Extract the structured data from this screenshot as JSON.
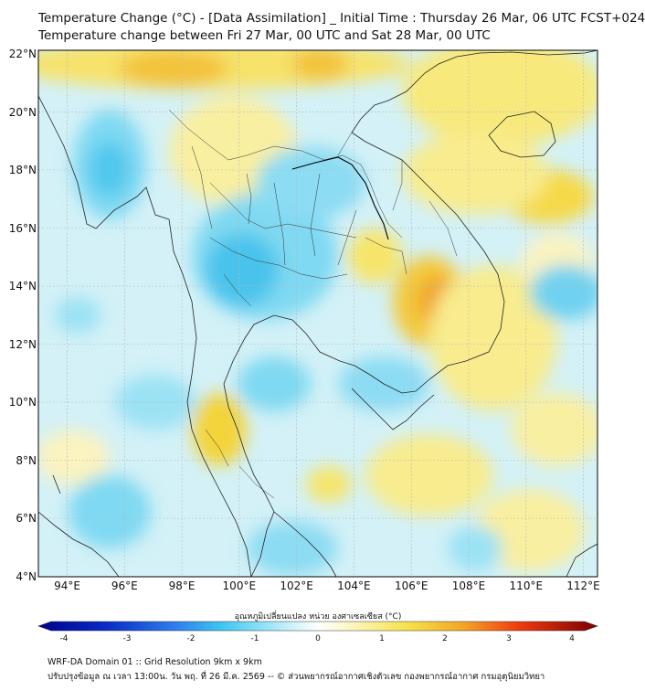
{
  "title_line1": "Temperature Change (°C) - [Data Assimilation] _ Initial Time : Thursday 26 Mar, 06 UTC FCST+024",
  "title_line2": "Temperature change between Fri 27 Mar, 00 UTC and Sat 28 Mar, 00 UTC",
  "map": {
    "lon_range": [
      93,
      112.5
    ],
    "lat_range": [
      4,
      22.2
    ],
    "lat_ticks": [
      "22°N",
      "20°N",
      "18°N",
      "16°N",
      "14°N",
      "12°N",
      "10°N",
      "8°N",
      "6°N",
      "4°N"
    ],
    "lon_ticks": [
      "94°E",
      "96°E",
      "98°E",
      "100°E",
      "102°E",
      "104°E",
      "106°E",
      "108°E",
      "110°E",
      "112°E"
    ],
    "grid": true
  },
  "colorbar": {
    "label": "อุณหภูมิเปลี่ยนแปลง หน่วย องศาเซลเซียส (°C)",
    "tick_labels": [
      "-4",
      "-3",
      "-2",
      "-1",
      "0",
      "1",
      "2",
      "3",
      "4"
    ],
    "range": [
      -4,
      4
    ],
    "colors": {
      "cold_extreme": "#00008b",
      "cold": "#1e4ad8",
      "cool": "#3fc8f0",
      "neutral": "#ffffff",
      "warm": "#f6e24a",
      "hot": "#f08a1c",
      "hot_extreme": "#7a0000"
    }
  },
  "footer_line1": "WRF-DA Domain 01 :: Grid Resolution 9km x 9km",
  "footer_line2": "ปรับปรุงข้อมูล ณ เวลา 13:00น. วัน พฤ. ที่ 26 มี.ค. 2569 -- © ส่วนพยากรณ์อากาศเชิงตัวเลข กองพยากรณ์อากาศ กรมอุตุนิยมวิทยา"
}
